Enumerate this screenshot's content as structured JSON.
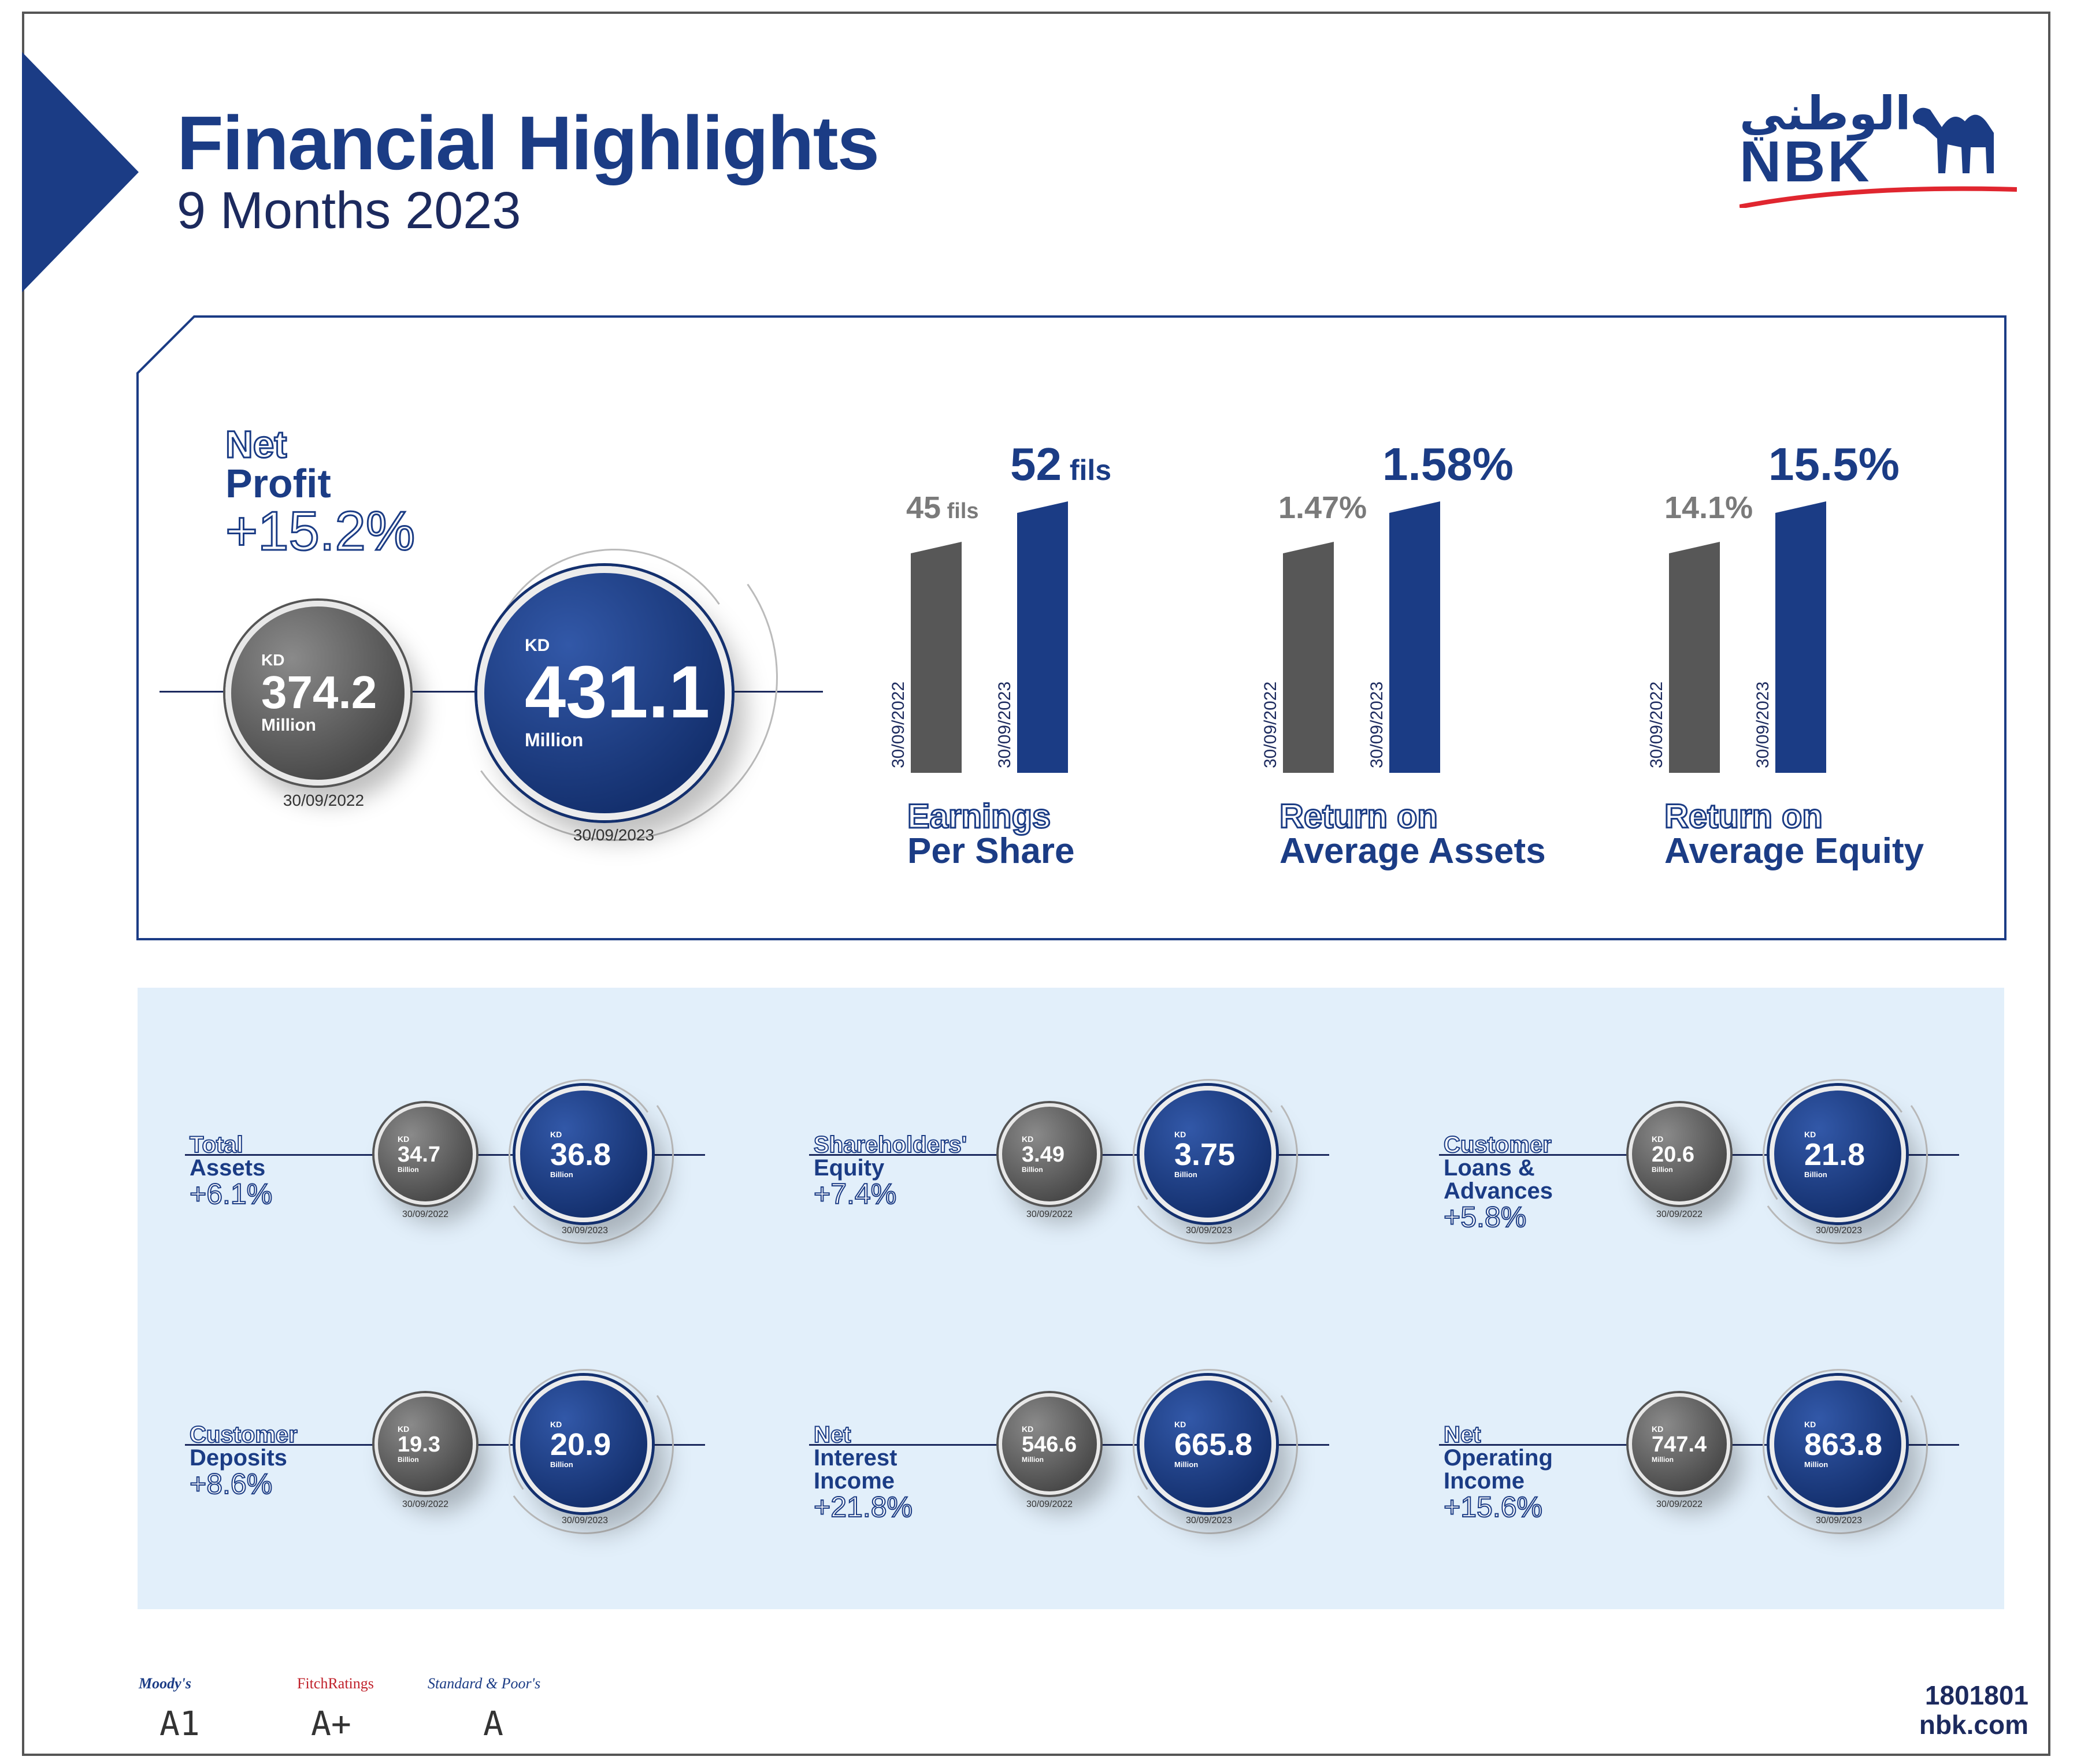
{
  "header": {
    "title": "Financial Highlights",
    "subtitle": "9 Months 2023"
  },
  "logo": {
    "arabic": "الوطني",
    "latin": "NBK",
    "icon": "camel-icon"
  },
  "colors": {
    "brand_blue": "#1b3c85",
    "grey_bar": "#575757",
    "light_panel": "#e2effa",
    "accent_red": "#e0262f"
  },
  "net_profit": {
    "label_line1": "Net",
    "label_line2": "Profit",
    "change": "+15.2%",
    "prev": {
      "currency": "KD",
      "value": "374.2",
      "unit": "Million",
      "date": "30/09/2022"
    },
    "curr": {
      "currency": "KD",
      "value": "431.1",
      "unit": "Million",
      "date": "30/09/2023"
    }
  },
  "ratios": [
    {
      "label_line1": "Earnings",
      "label_line2": "Per Share",
      "prev": {
        "text": "45",
        "suffix": "fils",
        "date": "30/09/2022"
      },
      "curr": {
        "text": "52",
        "suffix": "fils",
        "date": "30/09/2023"
      }
    },
    {
      "label_line1": "Return on",
      "label_line2": "Average Assets",
      "prev": {
        "text": "1.47%",
        "suffix": "",
        "date": "30/09/2022"
      },
      "curr": {
        "text": "1.58%",
        "suffix": "",
        "date": "30/09/2023"
      }
    },
    {
      "label_line1": "Return on",
      "label_line2": "Average Equity",
      "prev": {
        "text": "14.1%",
        "suffix": "",
        "date": "30/09/2022"
      },
      "curr": {
        "text": "15.5%",
        "suffix": "",
        "date": "30/09/2023"
      }
    }
  ],
  "chart_data": [
    {
      "type": "bar",
      "categories": [
        "30/09/2022",
        "30/09/2023"
      ],
      "values": [
        45,
        52
      ],
      "title": "Earnings Per Share",
      "ylabel": "fils"
    },
    {
      "type": "bar",
      "categories": [
        "30/09/2022",
        "30/09/2023"
      ],
      "values": [
        1.47,
        1.58
      ],
      "title": "Return on Average Assets",
      "ylabel": "%"
    },
    {
      "type": "bar",
      "categories": [
        "30/09/2022",
        "30/09/2023"
      ],
      "values": [
        14.1,
        15.5
      ],
      "title": "Return on Average Equity",
      "ylabel": "%"
    }
  ],
  "metrics": [
    {
      "label": [
        "Total",
        "Assets"
      ],
      "outline_lines": 1,
      "change": "+6.1%",
      "prev": {
        "value": "34.7",
        "unit": "Billion",
        "date": "30/09/2022"
      },
      "curr": {
        "value": "36.8",
        "unit": "Billion",
        "date": "30/09/2023"
      }
    },
    {
      "label": [
        "Shareholders'",
        "Equity"
      ],
      "outline_lines": 1,
      "change": "+7.4%",
      "prev": {
        "value": "3.49",
        "unit": "Billion",
        "date": "30/09/2022"
      },
      "curr": {
        "value": "3.75",
        "unit": "Billion",
        "date": "30/09/2023"
      }
    },
    {
      "label": [
        "Customer",
        "Loans &",
        "Advances"
      ],
      "outline_lines": 1,
      "change": "+5.8%",
      "prev": {
        "value": "20.6",
        "unit": "Billion",
        "date": "30/09/2022"
      },
      "curr": {
        "value": "21.8",
        "unit": "Billion",
        "date": "30/09/2023"
      }
    },
    {
      "label": [
        "Customer",
        "Deposits"
      ],
      "outline_lines": 1,
      "change": "+8.6%",
      "prev": {
        "value": "19.3",
        "unit": "Billion",
        "date": "30/09/2022"
      },
      "curr": {
        "value": "20.9",
        "unit": "Billion",
        "date": "30/09/2023"
      }
    },
    {
      "label": [
        "Net",
        "Interest",
        "Income"
      ],
      "outline_lines": 1,
      "change": "+21.8%",
      "prev": {
        "value": "546.6",
        "unit": "Million",
        "date": "30/09/2022"
      },
      "curr": {
        "value": "665.8",
        "unit": "Million",
        "date": "30/09/2023"
      }
    },
    {
      "label": [
        "Net",
        "Operating",
        "Income"
      ],
      "outline_lines": 1,
      "change": "+15.6%",
      "prev": {
        "value": "747.4",
        "unit": "Million",
        "date": "30/09/2022"
      },
      "curr": {
        "value": "863.8",
        "unit": "Million",
        "date": "30/09/2023"
      }
    }
  ],
  "metric_currency": "KD",
  "ratings": [
    {
      "agency": "Moody's",
      "rating": "A1"
    },
    {
      "agency": "FitchRatings",
      "rating": "A+"
    },
    {
      "agency": "Standard & Poor's",
      "rating": "A"
    }
  ],
  "contact": {
    "phone": "1801801",
    "website": "nbk.com"
  }
}
